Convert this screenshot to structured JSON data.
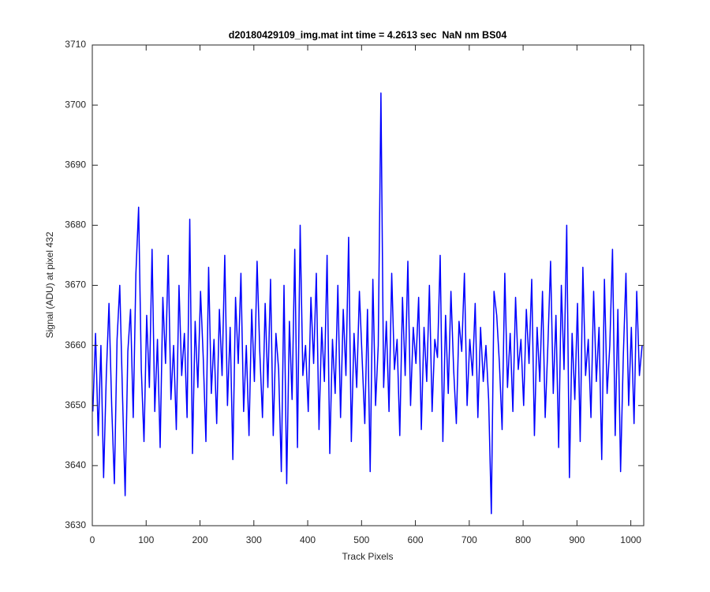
{
  "chart_data": {
    "type": "line",
    "title": "d20180429109_img.mat int time = 4.2613 sec  NaN nm BS04",
    "x_label": "Track Pixels",
    "y_label": "Signal (ADU) at pixel 432",
    "xlim": [
      0,
      1024
    ],
    "ylim": [
      3630,
      3710
    ],
    "xticks": [
      0,
      100,
      200,
      300,
      400,
      500,
      600,
      700,
      800,
      900,
      1000
    ],
    "yticks": [
      3630,
      3640,
      3650,
      3660,
      3670,
      3680,
      3690,
      3700,
      3710
    ],
    "grid": false,
    "series": [
      {
        "color": "#0000ff",
        "x": [
          1,
          6,
          11,
          16,
          21,
          26,
          31,
          36,
          41,
          46,
          51,
          56,
          61,
          66,
          71,
          76,
          81,
          86,
          91,
          96,
          101,
          106,
          111,
          116,
          121,
          126,
          131,
          136,
          141,
          146,
          151,
          156,
          161,
          166,
          171,
          176,
          181,
          186,
          191,
          196,
          201,
          206,
          211,
          216,
          221,
          226,
          231,
          236,
          241,
          246,
          251,
          256,
          261,
          266,
          271,
          276,
          281,
          286,
          291,
          296,
          301,
          306,
          311,
          316,
          321,
          326,
          331,
          336,
          341,
          346,
          351,
          356,
          361,
          366,
          371,
          376,
          381,
          386,
          391,
          396,
          401,
          406,
          411,
          416,
          421,
          426,
          431,
          436,
          441,
          446,
          451,
          456,
          461,
          466,
          471,
          476,
          481,
          486,
          491,
          496,
          501,
          506,
          511,
          516,
          521,
          526,
          531,
          536,
          541,
          546,
          551,
          556,
          561,
          566,
          571,
          576,
          581,
          586,
          591,
          596,
          601,
          606,
          611,
          616,
          621,
          626,
          631,
          636,
          641,
          646,
          651,
          656,
          661,
          666,
          671,
          676,
          681,
          686,
          691,
          696,
          701,
          706,
          711,
          716,
          721,
          726,
          731,
          736,
          741,
          746,
          751,
          756,
          761,
          766,
          771,
          776,
          781,
          786,
          791,
          796,
          801,
          806,
          811,
          816,
          821,
          826,
          831,
          836,
          841,
          846,
          851,
          856,
          861,
          866,
          871,
          876,
          881,
          886,
          891,
          896,
          901,
          906,
          911,
          916,
          921,
          926,
          931,
          936,
          941,
          946,
          951,
          956,
          961,
          966,
          971,
          976,
          981,
          986,
          991,
          996,
          1001,
          1006,
          1011,
          1016,
          1021
        ],
        "values": [
          3649,
          3662,
          3645,
          3660,
          3638,
          3655,
          3667,
          3650,
          3637,
          3661,
          3670,
          3652,
          3635,
          3659,
          3666,
          3648,
          3672,
          3683,
          3656,
          3644,
          3665,
          3653,
          3676,
          3649,
          3661,
          3643,
          3668,
          3657,
          3675,
          3651,
          3660,
          3646,
          3670,
          3655,
          3662,
          3648,
          3681,
          3642,
          3664,
          3653,
          3669,
          3658,
          3644,
          3673,
          3652,
          3661,
          3647,
          3666,
          3655,
          3675,
          3650,
          3663,
          3641,
          3668,
          3657,
          3672,
          3649,
          3660,
          3645,
          3666,
          3654,
          3674,
          3659,
          3648,
          3667,
          3653,
          3671,
          3645,
          3662,
          3656,
          3639,
          3670,
          3637,
          3664,
          3651,
          3676,
          3643,
          3680,
          3655,
          3660,
          3649,
          3668,
          3657,
          3672,
          3646,
          3663,
          3654,
          3675,
          3642,
          3661,
          3652,
          3670,
          3648,
          3666,
          3655,
          3678,
          3644,
          3662,
          3653,
          3669,
          3658,
          3647,
          3666,
          3639,
          3671,
          3650,
          3660,
          3702,
          3653,
          3664,
          3649,
          3672,
          3656,
          3661,
          3645,
          3668,
          3655,
          3674,
          3650,
          3663,
          3657,
          3668,
          3646,
          3663,
          3654,
          3670,
          3649,
          3661,
          3658,
          3675,
          3644,
          3665,
          3652,
          3669,
          3656,
          3647,
          3664,
          3659,
          3672,
          3650,
          3661,
          3655,
          3667,
          3648,
          3663,
          3654,
          3660,
          3651,
          3632,
          3669,
          3665,
          3657,
          3646,
          3672,
          3653,
          3662,
          3649,
          3668,
          3656,
          3661,
          3650,
          3666,
          3657,
          3671,
          3645,
          3663,
          3654,
          3669,
          3648,
          3660,
          3674,
          3652,
          3665,
          3643,
          3670,
          3656,
          3680,
          3638,
          3662,
          3651,
          3667,
          3644,
          3673,
          3655,
          3661,
          3648,
          3669,
          3654,
          3663,
          3641,
          3671,
          3652,
          3660,
          3676,
          3645,
          3666,
          3639,
          3658,
          3672,
          3650,
          3663,
          3647,
          3669,
          3655,
          3660
        ]
      }
    ]
  }
}
